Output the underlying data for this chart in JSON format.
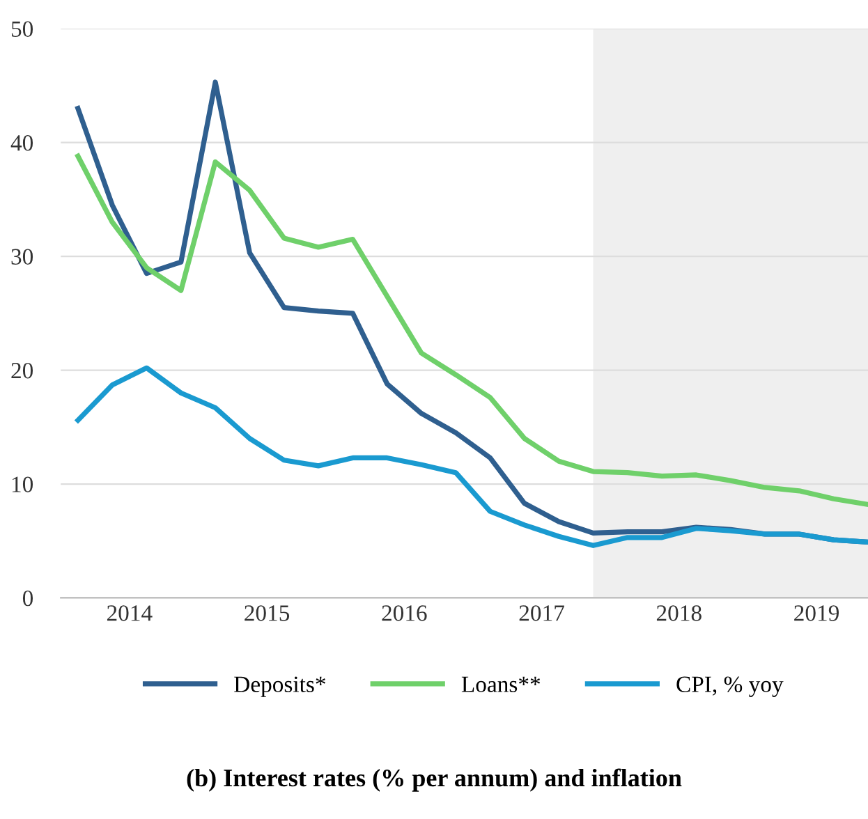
{
  "chart_data": {
    "type": "line",
    "title": "(b) Interest rates (% per annum) and inflation",
    "x": [
      2014.125,
      2014.375,
      2014.625,
      2014.875,
      2015.125,
      2015.375,
      2015.625,
      2015.875,
      2016.125,
      2016.375,
      2016.625,
      2016.875,
      2017.125,
      2017.375,
      2017.625,
      2017.875,
      2018.125,
      2018.375,
      2018.625,
      2018.875,
      2019.125,
      2019.375,
      2019.625,
      2019.875
    ],
    "series": [
      {
        "name": "Deposits*",
        "color": "#2f5f8f",
        "values": [
          43,
          34.5,
          28.5,
          29.5,
          45.3,
          30.3,
          25.5,
          25.2,
          25.0,
          18.8,
          16.2,
          14.5,
          12.3,
          8.3,
          6.7,
          5.7,
          5.8,
          5.8,
          6.2,
          6.0,
          5.6,
          5.6,
          5.1,
          4.9
        ]
      },
      {
        "name": "Loans**",
        "color": "#6fd06a",
        "values": [
          38.8,
          33,
          29,
          27,
          38.3,
          35.8,
          31.6,
          30.8,
          31.5,
          26.5,
          21.5,
          19.6,
          17.6,
          14.0,
          12.0,
          11.1,
          11.0,
          10.7,
          10.8,
          10.3,
          9.7,
          9.4,
          8.7,
          8.2
        ]
      },
      {
        "name": "CPI, % yoy",
        "color": "#1a9ad0",
        "values": [
          15.6,
          18.7,
          20.2,
          18.0,
          16.7,
          14.0,
          12.1,
          11.6,
          12.3,
          12.3,
          11.7,
          11.0,
          7.6,
          6.4,
          5.4,
          4.6,
          5.3,
          5.3,
          6.1,
          5.9,
          5.6,
          5.6,
          5.1,
          4.9
        ]
      }
    ],
    "xlim": [
      2014,
      2019.875
    ],
    "xticks": [
      {
        "value": 2014.5,
        "label": "2014"
      },
      {
        "value": 2015.5,
        "label": "2015"
      },
      {
        "value": 2016.5,
        "label": "2016"
      },
      {
        "value": 2017.5,
        "label": "2017"
      },
      {
        "value": 2018.5,
        "label": "2018"
      },
      {
        "value": 2019.5,
        "label": "2019"
      }
    ],
    "ylim": [
      0,
      50
    ],
    "yticks": [
      0,
      10,
      20,
      30,
      40,
      50
    ],
    "bands": [
      {
        "axis": "x",
        "from": 2017.875,
        "to": 2019.875,
        "color": "#efefef"
      }
    ],
    "grid": "y",
    "legend": "bottom",
    "marker": "none",
    "line_style": "solid"
  }
}
